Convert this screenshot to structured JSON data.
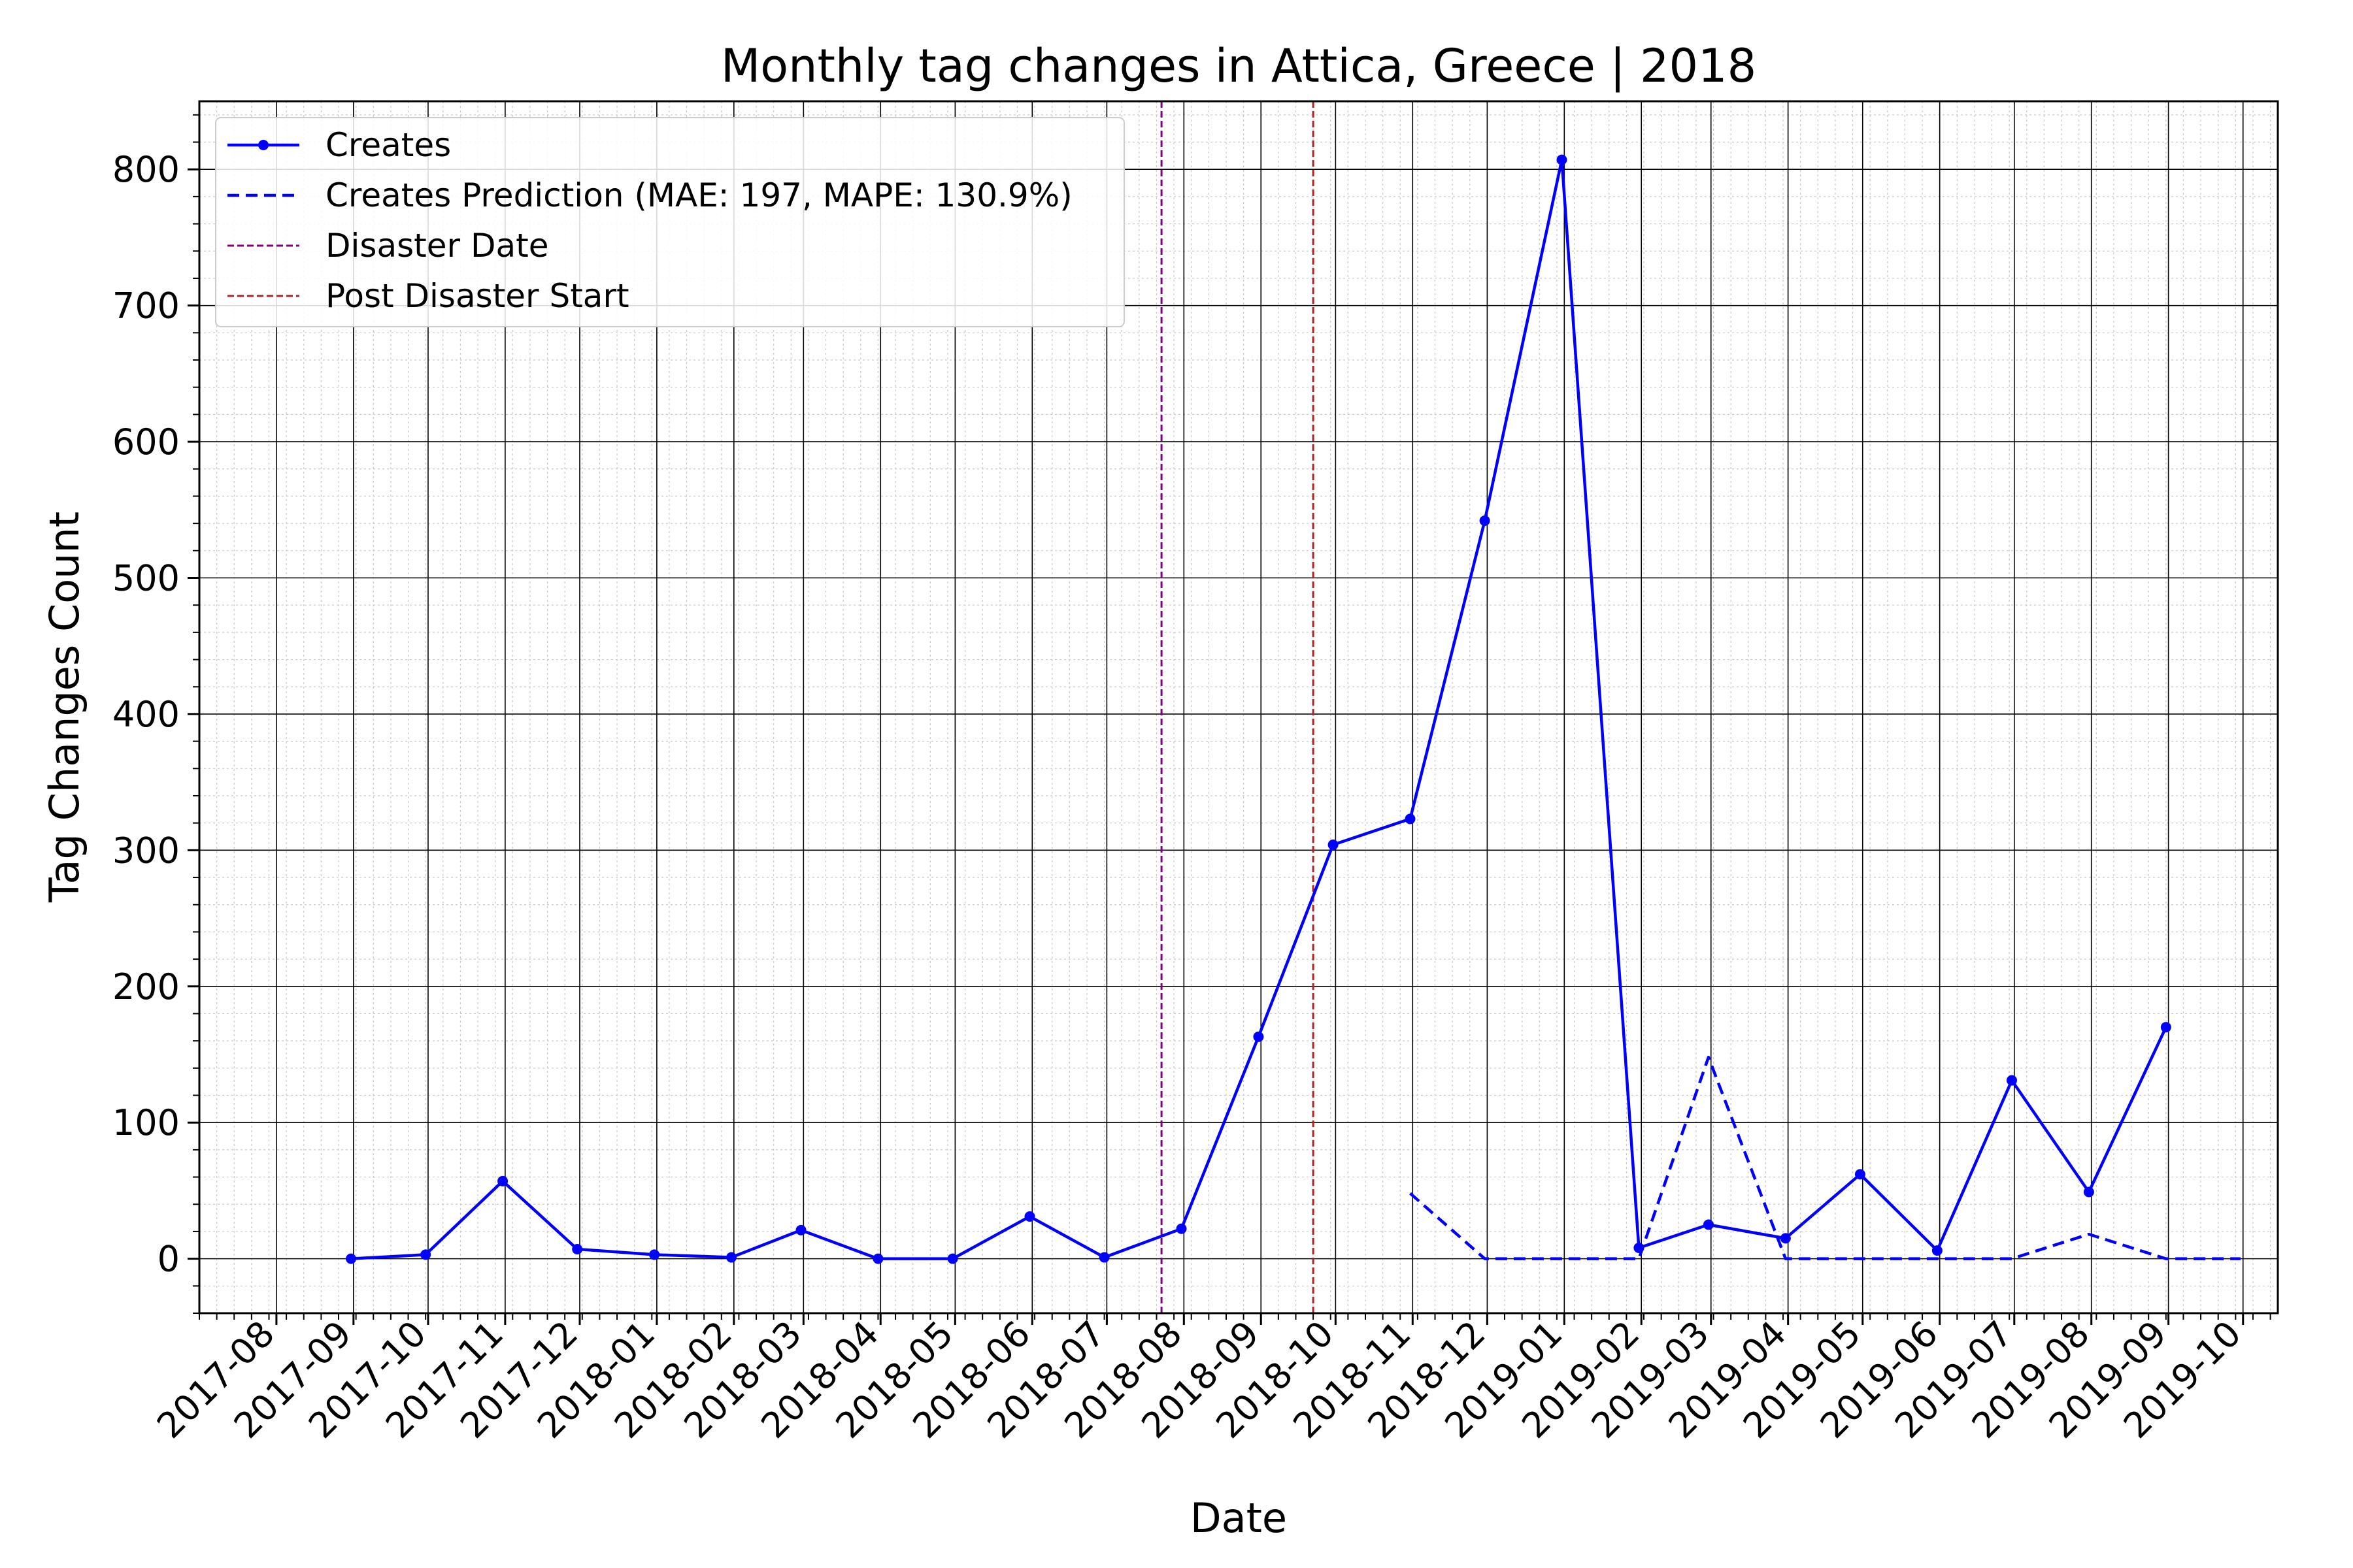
{
  "chart_data": {
    "type": "line",
    "title": "Monthly tag changes in Attica, Greece | 2018",
    "xlabel": "Date",
    "ylabel": "Tag Changes Count",
    "ylim": [
      -40,
      850
    ],
    "y_ticks": [
      0,
      100,
      200,
      300,
      400,
      500,
      600,
      700,
      800
    ],
    "x_tick_labels": [
      "2017-08",
      "2017-09",
      "2017-10",
      "2017-11",
      "2017-12",
      "2018-01",
      "2018-02",
      "2018-03",
      "2018-04",
      "2018-05",
      "2018-06",
      "2018-07",
      "2018-08",
      "2018-09",
      "2018-10",
      "2018-11",
      "2018-12",
      "2019-01",
      "2019-02",
      "2019-03",
      "2019-04",
      "2019-05",
      "2019-06",
      "2019-07",
      "2019-08",
      "2019-09",
      "2019-10"
    ],
    "grid": "major and minor",
    "legend_position": "upper-left",
    "series": [
      {
        "name": "Creates",
        "style": "solid-markers",
        "color": "#0000ff",
        "points": [
          {
            "x": "2017-08-31",
            "y": 0
          },
          {
            "x": "2017-09-30",
            "y": 3
          },
          {
            "x": "2017-10-31",
            "y": 57
          },
          {
            "x": "2017-11-30",
            "y": 7
          },
          {
            "x": "2017-12-31",
            "y": 3
          },
          {
            "x": "2018-01-31",
            "y": 1
          },
          {
            "x": "2018-02-28",
            "y": 21
          },
          {
            "x": "2018-03-31",
            "y": 0
          },
          {
            "x": "2018-04-30",
            "y": 0
          },
          {
            "x": "2018-05-31",
            "y": 31
          },
          {
            "x": "2018-06-30",
            "y": 1
          },
          {
            "x": "2018-07-31",
            "y": 22
          },
          {
            "x": "2018-08-31",
            "y": 163
          },
          {
            "x": "2018-09-30",
            "y": 304
          },
          {
            "x": "2018-10-31",
            "y": 323
          },
          {
            "x": "2018-11-30",
            "y": 542
          },
          {
            "x": "2018-12-31",
            "y": 807
          },
          {
            "x": "2019-01-31",
            "y": 8
          },
          {
            "x": "2019-02-28",
            "y": 25
          },
          {
            "x": "2019-03-31",
            "y": 15
          },
          {
            "x": "2019-04-30",
            "y": 62
          },
          {
            "x": "2019-05-31",
            "y": 6
          },
          {
            "x": "2019-06-30",
            "y": 131
          },
          {
            "x": "2019-07-31",
            "y": 49
          },
          {
            "x": "2019-08-31",
            "y": 170
          }
        ]
      },
      {
        "name": "Creates Prediction (MAE: 197, MAPE: 130.9%)",
        "style": "dashed",
        "color": "#0000ff",
        "points": [
          {
            "x": "2018-10-31",
            "y": 48
          },
          {
            "x": "2018-11-30",
            "y": 0
          },
          {
            "x": "2018-12-31",
            "y": 0
          },
          {
            "x": "2019-01-31",
            "y": 0
          },
          {
            "x": "2019-02-28",
            "y": 148
          },
          {
            "x": "2019-03-31",
            "y": 0
          },
          {
            "x": "2019-04-30",
            "y": 0
          },
          {
            "x": "2019-05-31",
            "y": 0
          },
          {
            "x": "2019-06-30",
            "y": 0
          },
          {
            "x": "2019-07-31",
            "y": 18
          },
          {
            "x": "2019-08-31",
            "y": 0
          },
          {
            "x": "2019-09-30",
            "y": 0
          }
        ]
      }
    ],
    "vlines": [
      {
        "name": "Disaster Date",
        "x": "2018-07-23",
        "color": "#800080",
        "style": "dashed"
      },
      {
        "name": "Post Disaster Start",
        "x": "2018-09-22",
        "color": "#b22222",
        "style": "dashed"
      }
    ]
  }
}
